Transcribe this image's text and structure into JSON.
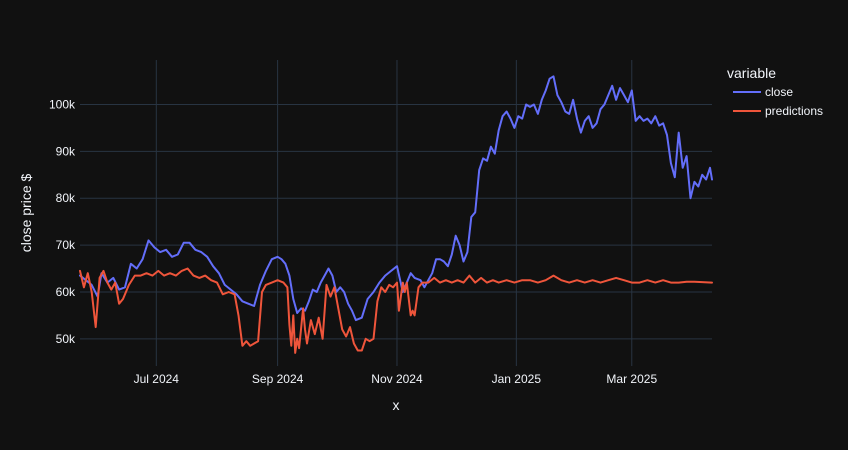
{
  "chart_data": {
    "type": "line",
    "title": "",
    "xlabel": "x",
    "ylabel": "close price $",
    "x_ticks": [
      "Jul 2024",
      "Sep 2024",
      "Nov 2024",
      "Jan 2025",
      "Mar 2025"
    ],
    "x_tick_dates": [
      "2024-07-01",
      "2024-09-01",
      "2024-11-01",
      "2025-01-01",
      "2025-03-01"
    ],
    "y_ticks": [
      {
        "value": 50000,
        "label": "50k"
      },
      {
        "value": 60000,
        "label": "60k"
      },
      {
        "value": 70000,
        "label": "70k"
      },
      {
        "value": 80000,
        "label": "80k"
      },
      {
        "value": 90000,
        "label": "90k"
      },
      {
        "value": 100000,
        "label": "100k"
      }
    ],
    "xlim": [
      "2024-05-23",
      "2025-04-11"
    ],
    "ylim": [
      44200,
      109500
    ],
    "grid": true,
    "legend": {
      "title": "variable",
      "position": "top-right"
    },
    "series": [
      {
        "name": "close",
        "color": "#636efa",
        "points": [
          [
            "2024-05-23",
            63500
          ],
          [
            "2024-05-26",
            62500
          ],
          [
            "2024-05-29",
            61500
          ],
          [
            "2024-06-01",
            59000
          ],
          [
            "2024-06-03",
            64000
          ],
          [
            "2024-06-06",
            62000
          ],
          [
            "2024-06-09",
            63000
          ],
          [
            "2024-06-12",
            60500
          ],
          [
            "2024-06-15",
            61000
          ],
          [
            "2024-06-18",
            66000
          ],
          [
            "2024-06-21",
            65000
          ],
          [
            "2024-06-24",
            67000
          ],
          [
            "2024-06-27",
            71000
          ],
          [
            "2024-06-30",
            69500
          ],
          [
            "2024-07-03",
            68500
          ],
          [
            "2024-07-06",
            69000
          ],
          [
            "2024-07-09",
            67500
          ],
          [
            "2024-07-12",
            68000
          ],
          [
            "2024-07-15",
            70500
          ],
          [
            "2024-07-18",
            70500
          ],
          [
            "2024-07-21",
            69000
          ],
          [
            "2024-07-24",
            68500
          ],
          [
            "2024-07-27",
            67500
          ],
          [
            "2024-07-30",
            65500
          ],
          [
            "2024-08-02",
            64000
          ],
          [
            "2024-08-05",
            61500
          ],
          [
            "2024-08-08",
            60500
          ],
          [
            "2024-08-11",
            59500
          ],
          [
            "2024-08-14",
            58000
          ],
          [
            "2024-08-17",
            57500
          ],
          [
            "2024-08-20",
            57000
          ],
          [
            "2024-08-23",
            61500
          ],
          [
            "2024-08-26",
            64500
          ],
          [
            "2024-08-29",
            67000
          ],
          [
            "2024-09-01",
            67500
          ],
          [
            "2024-09-03",
            67000
          ],
          [
            "2024-09-05",
            66000
          ],
          [
            "2024-09-07",
            63500
          ],
          [
            "2024-09-09",
            58500
          ],
          [
            "2024-09-11",
            55500
          ],
          [
            "2024-09-13",
            56500
          ],
          [
            "2024-09-15",
            56000
          ],
          [
            "2024-09-17",
            58000
          ],
          [
            "2024-09-19",
            60500
          ],
          [
            "2024-09-21",
            60000
          ],
          [
            "2024-09-23",
            62000
          ],
          [
            "2024-09-25",
            63500
          ],
          [
            "2024-09-27",
            65000
          ],
          [
            "2024-09-29",
            63500
          ],
          [
            "2024-10-01",
            60000
          ],
          [
            "2024-10-03",
            61000
          ],
          [
            "2024-10-05",
            60000
          ],
          [
            "2024-10-07",
            57500
          ],
          [
            "2024-10-09",
            56000
          ],
          [
            "2024-10-11",
            54000
          ],
          [
            "2024-10-14",
            54500
          ],
          [
            "2024-10-17",
            58500
          ],
          [
            "2024-10-20",
            60000
          ],
          [
            "2024-10-23",
            62000
          ],
          [
            "2024-10-26",
            63500
          ],
          [
            "2024-10-29",
            64500
          ],
          [
            "2024-11-01",
            65500
          ],
          [
            "2024-11-04",
            60000
          ],
          [
            "2024-11-06",
            62000
          ],
          [
            "2024-11-08",
            64000
          ],
          [
            "2024-11-10",
            63000
          ],
          [
            "2024-11-13",
            62500
          ],
          [
            "2024-11-15",
            61000
          ],
          [
            "2024-11-17",
            62500
          ],
          [
            "2024-11-19",
            64000
          ],
          [
            "2024-11-21",
            67000
          ],
          [
            "2024-11-23",
            67000
          ],
          [
            "2024-11-25",
            66500
          ],
          [
            "2024-11-27",
            65500
          ],
          [
            "2024-11-29",
            68000
          ],
          [
            "2024-12-01",
            72000
          ],
          [
            "2024-12-03",
            70000
          ],
          [
            "2024-12-05",
            66500
          ],
          [
            "2024-12-07",
            68500
          ],
          [
            "2024-12-09",
            76000
          ],
          [
            "2024-12-11",
            77000
          ],
          [
            "2024-12-13",
            86000
          ],
          [
            "2024-12-15",
            88500
          ],
          [
            "2024-12-17",
            88000
          ],
          [
            "2024-12-19",
            91000
          ],
          [
            "2024-12-21",
            89500
          ],
          [
            "2024-12-23",
            94500
          ],
          [
            "2024-12-25",
            97500
          ],
          [
            "2024-12-27",
            98500
          ],
          [
            "2024-12-29",
            97000
          ],
          [
            "2024-12-31",
            95000
          ],
          [
            "2025-01-02",
            97500
          ],
          [
            "2025-01-04",
            97000
          ],
          [
            "2025-01-06",
            100000
          ],
          [
            "2025-01-08",
            99500
          ],
          [
            "2025-01-10",
            100000
          ],
          [
            "2025-01-12",
            98000
          ],
          [
            "2025-01-14",
            101000
          ],
          [
            "2025-01-16",
            103000
          ],
          [
            "2025-01-18",
            105500
          ],
          [
            "2025-01-20",
            106000
          ],
          [
            "2025-01-22",
            102000
          ],
          [
            "2025-01-24",
            100500
          ],
          [
            "2025-01-26",
            98500
          ],
          [
            "2025-01-28",
            98000
          ],
          [
            "2025-01-30",
            101000
          ],
          [
            "2025-02-01",
            97000
          ],
          [
            "2025-02-03",
            94000
          ],
          [
            "2025-02-05",
            96500
          ],
          [
            "2025-02-07",
            97500
          ],
          [
            "2025-02-09",
            95000
          ],
          [
            "2025-02-11",
            96000
          ],
          [
            "2025-02-13",
            99000
          ],
          [
            "2025-02-15",
            100000
          ],
          [
            "2025-02-17",
            102000
          ],
          [
            "2025-02-19",
            104000
          ],
          [
            "2025-02-21",
            101000
          ],
          [
            "2025-02-23",
            103500
          ],
          [
            "2025-02-25",
            102000
          ],
          [
            "2025-02-27",
            100500
          ],
          [
            "2025-03-01",
            103000
          ],
          [
            "2025-03-03",
            96500
          ],
          [
            "2025-03-05",
            97500
          ],
          [
            "2025-03-07",
            96500
          ],
          [
            "2025-03-09",
            97000
          ],
          [
            "2025-03-11",
            96000
          ],
          [
            "2025-03-13",
            97500
          ],
          [
            "2025-03-15",
            95500
          ],
          [
            "2025-03-17",
            96000
          ],
          [
            "2025-03-19",
            93500
          ],
          [
            "2025-03-21",
            87500
          ],
          [
            "2025-03-23",
            84500
          ],
          [
            "2025-03-25",
            94000
          ],
          [
            "2025-03-27",
            86500
          ],
          [
            "2025-03-29",
            89000
          ],
          [
            "2025-03-31",
            80000
          ],
          [
            "2025-04-02",
            83500
          ],
          [
            "2025-04-04",
            82500
          ],
          [
            "2025-04-06",
            85000
          ],
          [
            "2025-04-08",
            84000
          ],
          [
            "2025-04-10",
            86500
          ],
          [
            "2025-04-11",
            84000
          ]
        ]
      },
      {
        "name": "predictions",
        "color": "#ef553b",
        "points": [
          [
            "2024-05-23",
            64500
          ],
          [
            "2024-05-25",
            61000
          ],
          [
            "2024-05-27",
            64000
          ],
          [
            "2024-05-29",
            60000
          ],
          [
            "2024-05-31",
            52500
          ],
          [
            "2024-06-02",
            63000
          ],
          [
            "2024-06-04",
            64500
          ],
          [
            "2024-06-06",
            62000
          ],
          [
            "2024-06-08",
            60500
          ],
          [
            "2024-06-10",
            62000
          ],
          [
            "2024-06-12",
            57500
          ],
          [
            "2024-06-14",
            58500
          ],
          [
            "2024-06-17",
            61500
          ],
          [
            "2024-06-20",
            63500
          ],
          [
            "2024-06-23",
            63500
          ],
          [
            "2024-06-26",
            64000
          ],
          [
            "2024-06-29",
            63500
          ],
          [
            "2024-07-02",
            64500
          ],
          [
            "2024-07-05",
            63500
          ],
          [
            "2024-07-08",
            64000
          ],
          [
            "2024-07-11",
            63500
          ],
          [
            "2024-07-14",
            64500
          ],
          [
            "2024-07-17",
            65000
          ],
          [
            "2024-07-20",
            63500
          ],
          [
            "2024-07-23",
            63000
          ],
          [
            "2024-07-26",
            63500
          ],
          [
            "2024-07-29",
            62500
          ],
          [
            "2024-08-01",
            62000
          ],
          [
            "2024-08-04",
            59500
          ],
          [
            "2024-08-07",
            60000
          ],
          [
            "2024-08-10",
            59500
          ],
          [
            "2024-08-12",
            55000
          ],
          [
            "2024-08-14",
            48500
          ],
          [
            "2024-08-16",
            49500
          ],
          [
            "2024-08-18",
            48500
          ],
          [
            "2024-08-20",
            49000
          ],
          [
            "2024-08-22",
            49500
          ],
          [
            "2024-08-24",
            60000
          ],
          [
            "2024-08-26",
            61500
          ],
          [
            "2024-08-29",
            62000
          ],
          [
            "2024-09-01",
            62500
          ],
          [
            "2024-09-04",
            62000
          ],
          [
            "2024-09-06",
            61000
          ],
          [
            "2024-09-07",
            53000
          ],
          [
            "2024-09-08",
            48500
          ],
          [
            "2024-09-09",
            55000
          ],
          [
            "2024-09-10",
            47000
          ],
          [
            "2024-09-11",
            50000
          ],
          [
            "2024-09-12",
            48000
          ],
          [
            "2024-09-14",
            56500
          ],
          [
            "2024-09-15",
            52000
          ],
          [
            "2024-09-16",
            49000
          ],
          [
            "2024-09-18",
            54000
          ],
          [
            "2024-09-20",
            51000
          ],
          [
            "2024-09-22",
            54500
          ],
          [
            "2024-09-24",
            50000
          ],
          [
            "2024-09-26",
            61500
          ],
          [
            "2024-09-28",
            59000
          ],
          [
            "2024-09-30",
            61000
          ],
          [
            "2024-10-02",
            56500
          ],
          [
            "2024-10-04",
            52000
          ],
          [
            "2024-10-06",
            50500
          ],
          [
            "2024-10-08",
            52500
          ],
          [
            "2024-10-10",
            49000
          ],
          [
            "2024-10-12",
            47500
          ],
          [
            "2024-10-14",
            47500
          ],
          [
            "2024-10-16",
            50000
          ],
          [
            "2024-10-18",
            49500
          ],
          [
            "2024-10-20",
            50000
          ],
          [
            "2024-10-22",
            58000
          ],
          [
            "2024-10-24",
            61000
          ],
          [
            "2024-10-26",
            60000
          ],
          [
            "2024-10-28",
            61500
          ],
          [
            "2024-10-30",
            61000
          ],
          [
            "2024-11-01",
            62000
          ],
          [
            "2024-11-02",
            56000
          ],
          [
            "2024-11-04",
            62000
          ],
          [
            "2024-11-05",
            60000
          ],
          [
            "2024-11-06",
            62000
          ],
          [
            "2024-11-08",
            55000
          ],
          [
            "2024-11-09",
            56000
          ],
          [
            "2024-11-10",
            55000
          ],
          [
            "2024-11-12",
            61000
          ],
          [
            "2024-11-14",
            62000
          ],
          [
            "2024-11-17",
            62000
          ],
          [
            "2024-11-20",
            63000
          ],
          [
            "2024-11-23",
            62000
          ],
          [
            "2024-11-26",
            62500
          ],
          [
            "2024-11-29",
            62000
          ],
          [
            "2024-12-02",
            62500
          ],
          [
            "2024-12-05",
            62000
          ],
          [
            "2024-12-08",
            63500
          ],
          [
            "2024-12-11",
            62000
          ],
          [
            "2024-12-14",
            63000
          ],
          [
            "2024-12-17",
            62000
          ],
          [
            "2024-12-20",
            62500
          ],
          [
            "2024-12-23",
            62000
          ],
          [
            "2024-12-27",
            62500
          ],
          [
            "2024-12-31",
            62000
          ],
          [
            "2025-01-04",
            62500
          ],
          [
            "2025-01-08",
            62500
          ],
          [
            "2025-01-12",
            62000
          ],
          [
            "2025-01-16",
            62500
          ],
          [
            "2025-01-20",
            63500
          ],
          [
            "2025-01-24",
            62500
          ],
          [
            "2025-01-28",
            62000
          ],
          [
            "2025-02-01",
            62500
          ],
          [
            "2025-02-05",
            62000
          ],
          [
            "2025-02-09",
            62500
          ],
          [
            "2025-02-13",
            62000
          ],
          [
            "2025-02-17",
            62500
          ],
          [
            "2025-02-21",
            63000
          ],
          [
            "2025-02-25",
            62500
          ],
          [
            "2025-03-01",
            62000
          ],
          [
            "2025-03-05",
            62000
          ],
          [
            "2025-03-09",
            62500
          ],
          [
            "2025-03-13",
            62000
          ],
          [
            "2025-03-17",
            62500
          ],
          [
            "2025-03-21",
            62000
          ],
          [
            "2025-03-25",
            62000
          ],
          [
            "2025-03-29",
            62200
          ],
          [
            "2025-04-02",
            62200
          ],
          [
            "2025-04-06",
            62100
          ],
          [
            "2025-04-11",
            62000
          ]
        ]
      }
    ]
  }
}
